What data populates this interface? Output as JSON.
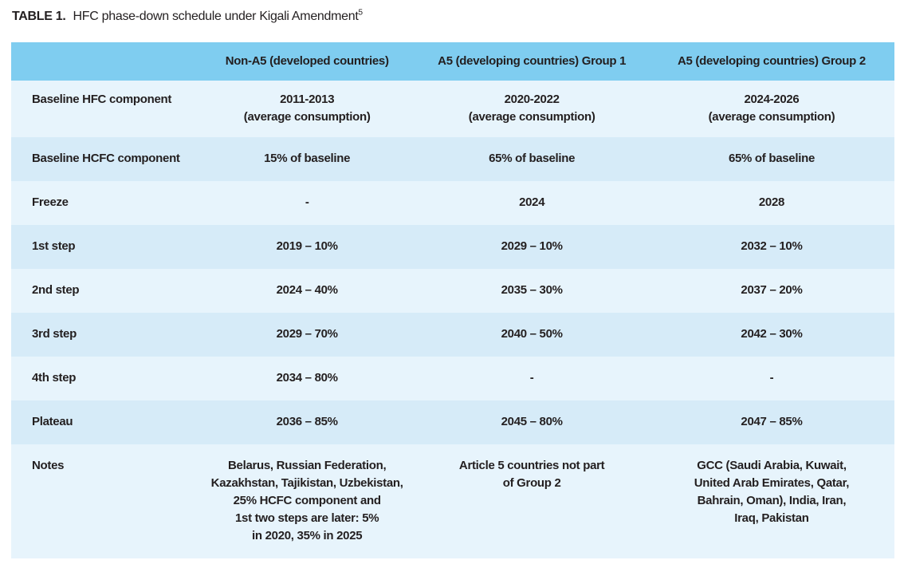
{
  "title": {
    "label": "TABLE 1.",
    "text": "HFC phase-down schedule under Kigali Amendment",
    "footnote_ref": "5"
  },
  "colors": {
    "header_bg": "#7fcdf0",
    "row_light": "#e7f4fc",
    "row_dark": "#d6ebf8",
    "text": "#231f20"
  },
  "table": {
    "columns": [
      "",
      "Non-A5 (developed countries)",
      "A5 (developing countries) Group 1",
      "A5 (developing countries) Group 2"
    ],
    "rows": [
      {
        "label": "Baseline HFC component",
        "cells": [
          "2011-2013\n(average consumption)",
          "2020-2022\n(average consumption)",
          "2024-2026\n(average consumption)"
        ]
      },
      {
        "label": "Baseline HCFC component",
        "cells": [
          "15% of baseline",
          "65% of baseline",
          "65% of baseline"
        ]
      },
      {
        "label": "Freeze",
        "cells": [
          "-",
          "2024",
          "2028"
        ]
      },
      {
        "label": "1st step",
        "cells": [
          "2019 – 10%",
          "2029 – 10%",
          "2032 – 10%"
        ]
      },
      {
        "label": "2nd step",
        "cells": [
          "2024 – 40%",
          "2035 – 30%",
          "2037 – 20%"
        ]
      },
      {
        "label": "3rd step",
        "cells": [
          "2029 – 70%",
          "2040 – 50%",
          "2042 – 30%"
        ]
      },
      {
        "label": "4th step",
        "cells": [
          "2034 – 80%",
          "-",
          "-"
        ]
      },
      {
        "label": "Plateau",
        "cells": [
          "2036 – 85%",
          "2045 – 80%",
          "2047 – 85%"
        ]
      },
      {
        "label": "Notes",
        "cells": [
          "Belarus, Russian Federation,\nKazakhstan, Tajikistan, Uzbekistan,\n25% HCFC component and\n1st two steps are later: 5%\nin 2020, 35% in 2025",
          "Article 5 countries not part\nof Group 2",
          "GCC (Saudi Arabia, Kuwait,\nUnited Arab Emirates, Qatar,\nBahrain, Oman), India, Iran,\nIraq, Pakistan"
        ]
      }
    ]
  }
}
